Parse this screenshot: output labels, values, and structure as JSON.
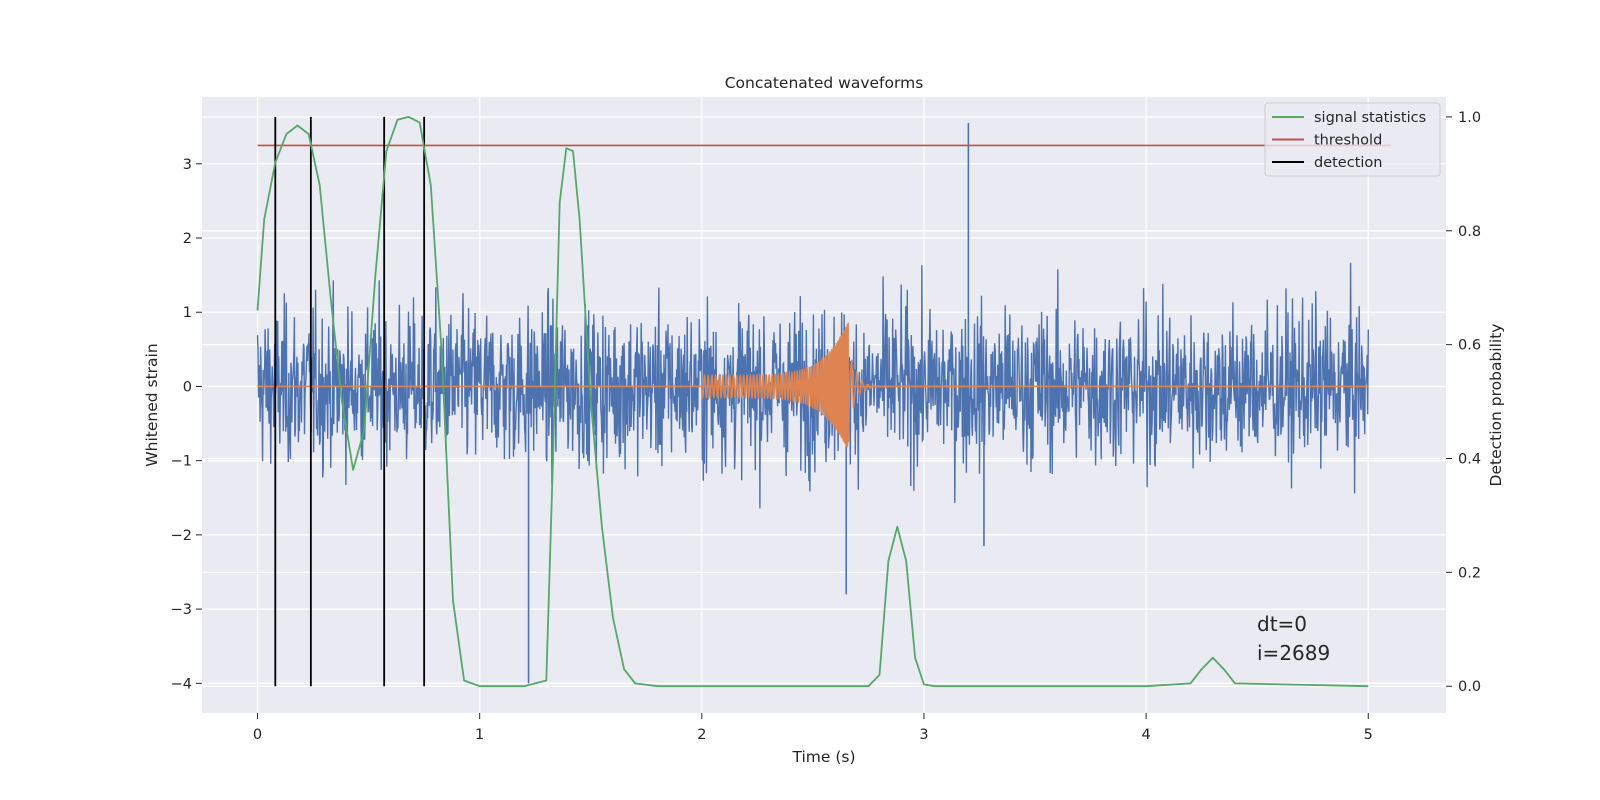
{
  "chart_data": {
    "type": "line",
    "title": "Concatenated waveforms",
    "xlabel": "Time (s)",
    "ylabel": "Whitened strain",
    "ylabel_right": "Detection probability",
    "xlim": [
      -0.25,
      5.35
    ],
    "ylim": [
      -4.4,
      3.9
    ],
    "ylim_right": [
      -0.047,
      1.035
    ],
    "x_ticks": [
      0,
      1,
      2,
      3,
      4,
      5
    ],
    "y_ticks": [
      -4,
      -3,
      -2,
      -1,
      0,
      1,
      2,
      3
    ],
    "y_ticks_right": [
      0.0,
      0.2,
      0.4,
      0.6,
      0.8,
      1.0
    ],
    "grid": true,
    "legend_position": "top-right",
    "legend": [
      {
        "label": "signal statistics",
        "color": "#55a868"
      },
      {
        "label": "threshold",
        "color": "#c44e52"
      },
      {
        "label": "detection",
        "color": "#000000"
      }
    ],
    "series": [
      {
        "name": "whitened strain",
        "axis": "left",
        "color": "#4c72b0",
        "description_range": [
          0,
          5
        ],
        "approx_amplitude": 1.5,
        "peaks": [
          [
            3.2,
            3.55
          ],
          [
            1.22,
            -4.0
          ],
          [
            3.27,
            -2.15
          ],
          [
            2.65,
            -2.8
          ]
        ]
      },
      {
        "name": "waveform",
        "axis": "left",
        "color": "#dd8452",
        "chirp_start": 2.0,
        "chirp_merger": 2.66,
        "amplitude_start": 0.15,
        "amplitude_merger": 0.88
      },
      {
        "name": "signal statistics",
        "axis": "right",
        "color": "#55a868",
        "x": [
          0.0,
          0.03,
          0.08,
          0.13,
          0.18,
          0.23,
          0.28,
          0.33,
          0.38,
          0.43,
          0.48,
          0.53,
          0.58,
          0.63,
          0.68,
          0.73,
          0.78,
          0.83,
          0.88,
          0.93,
          1.0,
          1.1,
          1.2,
          1.3,
          1.33,
          1.36,
          1.39,
          1.42,
          1.45,
          1.5,
          1.55,
          1.6,
          1.65,
          1.7,
          1.8,
          2.0,
          2.5,
          2.75,
          2.8,
          2.84,
          2.88,
          2.92,
          2.96,
          3.0,
          3.05,
          3.5,
          4.0,
          4.2,
          4.25,
          4.3,
          4.35,
          4.4,
          5.0
        ],
        "y": [
          0.66,
          0.82,
          0.92,
          0.97,
          0.985,
          0.97,
          0.88,
          0.68,
          0.5,
          0.38,
          0.45,
          0.72,
          0.94,
          0.995,
          1.0,
          0.99,
          0.88,
          0.58,
          0.15,
          0.01,
          0.0,
          0.0,
          0.0,
          0.01,
          0.4,
          0.85,
          0.945,
          0.94,
          0.82,
          0.5,
          0.28,
          0.12,
          0.03,
          0.005,
          0.0,
          0.0,
          0.0,
          0.0,
          0.02,
          0.22,
          0.28,
          0.22,
          0.05,
          0.003,
          0.0,
          0.0,
          0.0,
          0.005,
          0.03,
          0.05,
          0.03,
          0.005,
          0.0
        ]
      },
      {
        "name": "threshold",
        "axis": "right",
        "color": "#c44e52",
        "x": [
          0,
          5.1
        ],
        "y": [
          0.95,
          0.95
        ]
      }
    ],
    "detections": [
      0.08,
      0.24,
      0.57,
      0.75
    ],
    "detection_y_range": [
      0.0,
      1.0
    ],
    "annotations": [
      "dt=0",
      "i=2689"
    ]
  }
}
